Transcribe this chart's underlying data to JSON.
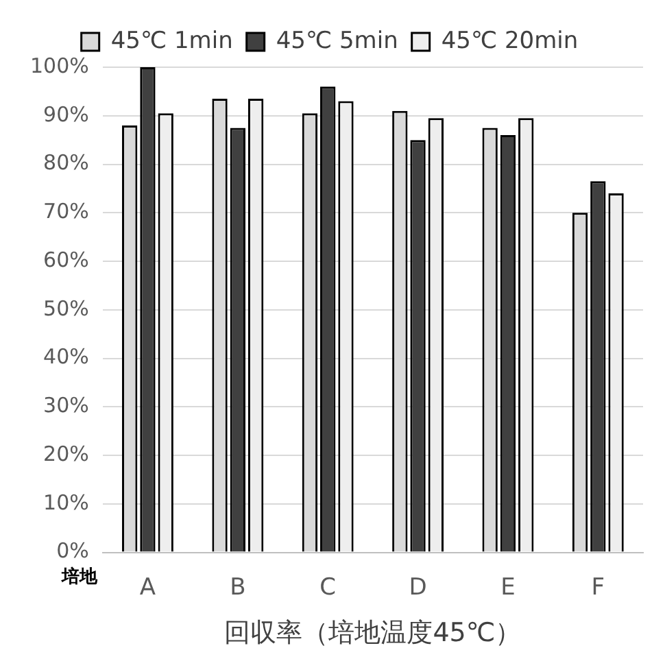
{
  "chart_data": {
    "type": "bar",
    "xlabel": "回収率（培地温度45℃）",
    "annotations": [
      "培地"
    ],
    "categories": [
      "A",
      "B",
      "C",
      "D",
      "E",
      "F"
    ],
    "series": [
      {
        "name": "45℃ 1min",
        "color": "#d9d9d9",
        "values": [
          88,
          93.5,
          90.5,
          91,
          87.5,
          70
        ]
      },
      {
        "name": "45℃ 5min",
        "color": "#404040",
        "values": [
          100,
          87.5,
          96,
          85,
          86,
          76.5
        ]
      },
      {
        "name": "45℃ 20min",
        "color": "#eeeeee",
        "values": [
          90.5,
          93.5,
          93,
          89.5,
          89.5,
          74
        ]
      }
    ],
    "ylim": [
      0,
      100
    ],
    "yticks": [
      {
        "value": 0,
        "label": "0%"
      },
      {
        "value": 10,
        "label": "10%"
      },
      {
        "value": 20,
        "label": "20%"
      },
      {
        "value": 30,
        "label": "30%"
      },
      {
        "value": 40,
        "label": "40%"
      },
      {
        "value": 50,
        "label": "50%"
      },
      {
        "value": 60,
        "label": "60%"
      },
      {
        "value": 70,
        "label": "70%"
      },
      {
        "value": 80,
        "label": "80%"
      },
      {
        "value": 90,
        "label": "90%"
      },
      {
        "value": 100,
        "label": "100%"
      }
    ],
    "grid": "y",
    "legend": "top"
  }
}
